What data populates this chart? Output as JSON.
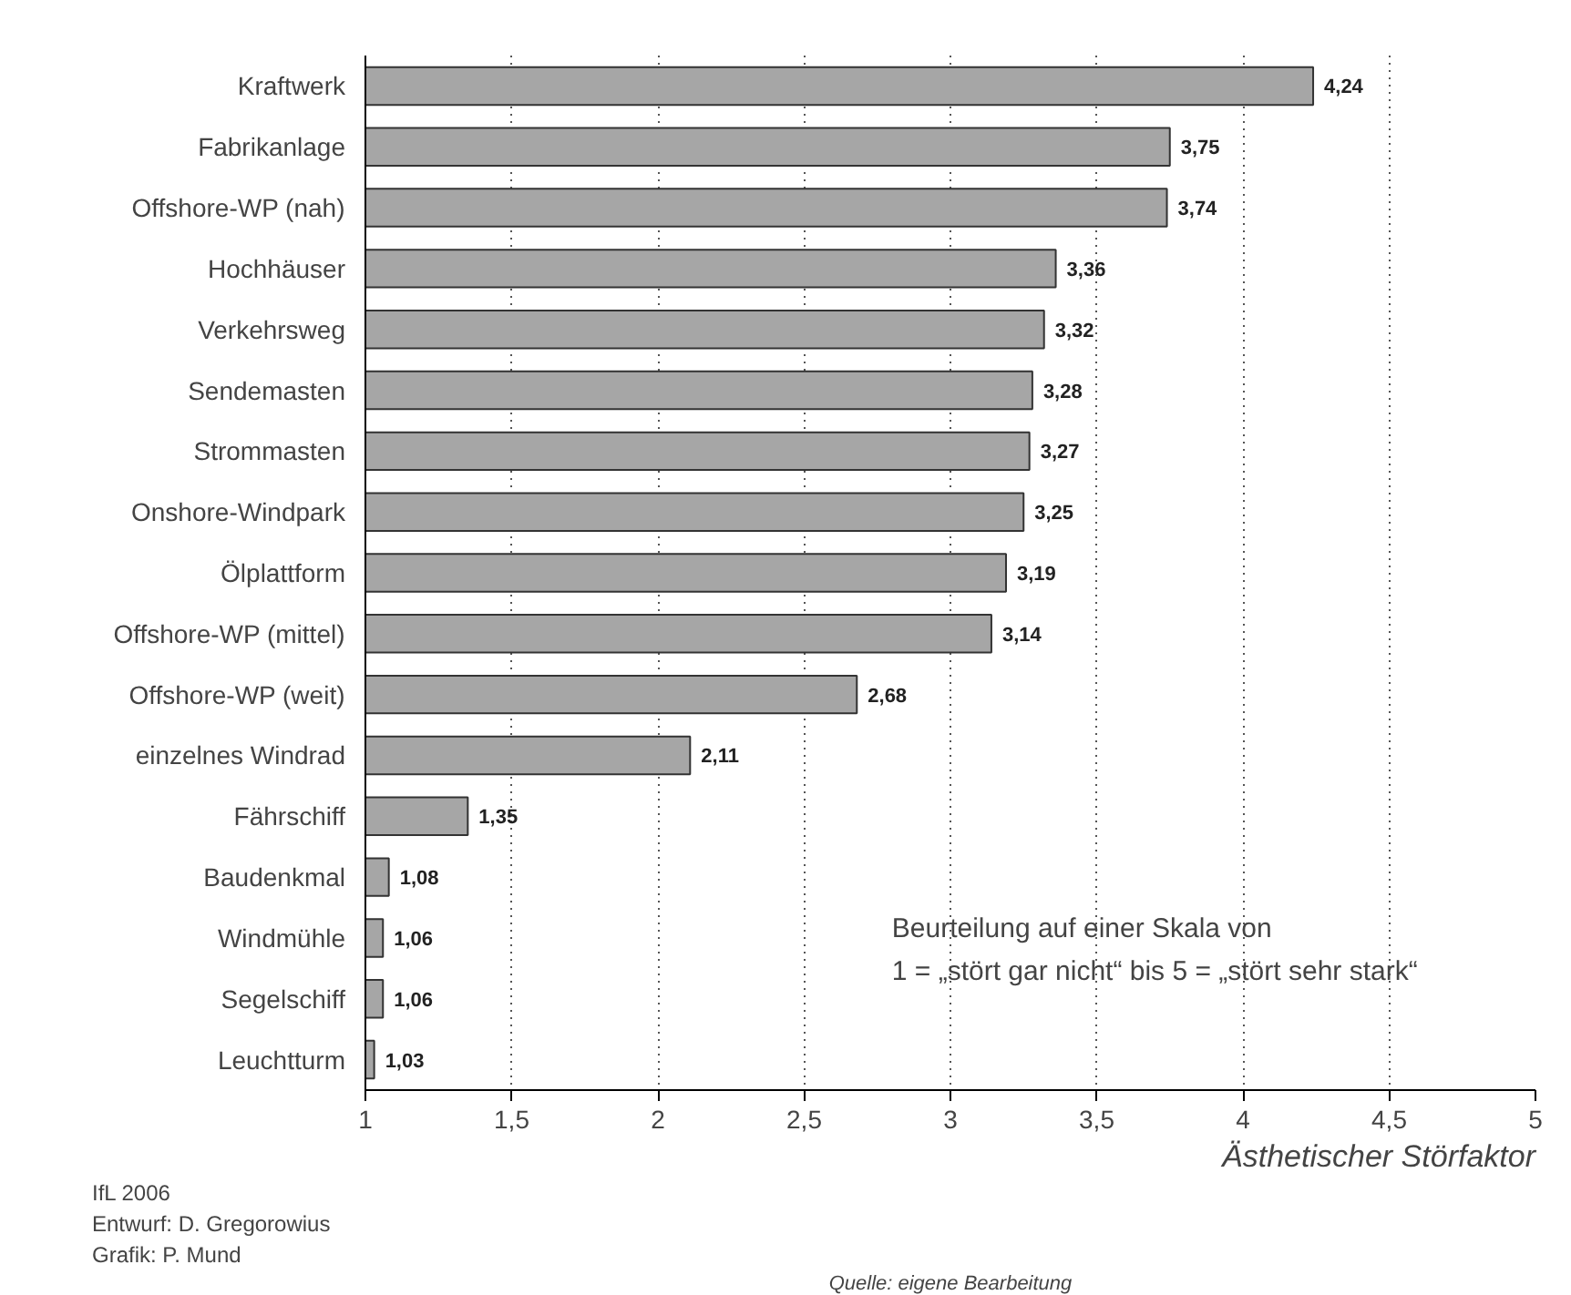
{
  "chart_data": {
    "type": "bar",
    "orientation": "horizontal",
    "xlabel": "Ästhetischer Störfaktor",
    "categories": [
      "Kraftwerk",
      "Fabrikanlage",
      "Offshore-WP (nah)",
      "Hochhäuser",
      "Verkehrsweg",
      "Sendemasten",
      "Strommasten",
      "Onshore-Windpark",
      "Ölplattform",
      "Offshore-WP (mittel)",
      "Offshore-WP (weit)",
      "einzelnes Windrad",
      "Fährschiff",
      "Baudenkmal",
      "Windmühle",
      "Segelschiff",
      "Leuchtturm"
    ],
    "values": [
      4.24,
      3.75,
      3.74,
      3.36,
      3.32,
      3.28,
      3.27,
      3.25,
      3.19,
      3.14,
      2.68,
      2.11,
      1.35,
      1.08,
      1.06,
      1.06,
      1.03
    ],
    "value_labels": [
      "4,24",
      "3,75",
      "3,74",
      "3,36",
      "3,32",
      "3,28",
      "3,27",
      "3,25",
      "3,19",
      "3,14",
      "2,68",
      "2,11",
      "1,35",
      "1,08",
      "1,06",
      "1,06",
      "1,03"
    ],
    "color": "#a6a6a6",
    "xlim": [
      1,
      5
    ],
    "xticks": [
      1,
      {
        "value": 1.5,
        "label": "1,5"
      },
      2,
      {
        "value": 2.5,
        "label": "2,5"
      },
      3,
      {
        "value": 3.5,
        "label": "3,5"
      },
      4,
      {
        "value": 4.5,
        "label": "4,5"
      },
      5
    ],
    "grid": "x",
    "annotations": [
      "Beurteilung auf einer Skala von",
      "1 = „stört gar nicht“ bis 5 = „stört sehr stark“",
      "IfL 2006",
      "Entwurf: D. Gregorowius",
      "Grafik: P. Mund",
      "Quelle: eigene Bearbeitung"
    ]
  }
}
